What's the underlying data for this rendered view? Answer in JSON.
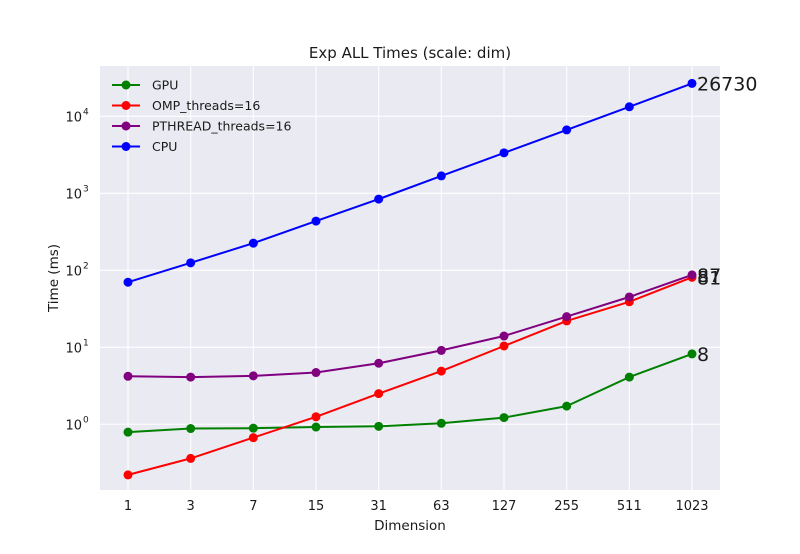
{
  "chart_data": {
    "type": "line",
    "title": "Exp ALL Times (scale: dim)",
    "xlabel": "Dimension",
    "ylabel": "Time (ms)",
    "x": [
      1,
      3,
      7,
      15,
      31,
      63,
      127,
      255,
      511,
      1023
    ],
    "x_scale": "log2",
    "y_scale": "log",
    "ylim": [
      0.14,
      45000
    ],
    "grid": true,
    "legend_position": "top-left",
    "y_ticks": [
      {
        "value": 1,
        "base": "10",
        "exp": "0"
      },
      {
        "value": 10,
        "base": "10",
        "exp": "1"
      },
      {
        "value": 100,
        "base": "10",
        "exp": "2"
      },
      {
        "value": 1000,
        "base": "10",
        "exp": "3"
      },
      {
        "value": 10000,
        "base": "10",
        "exp": "4"
      }
    ],
    "series": [
      {
        "name": "GPU",
        "color": "#008000",
        "values": [
          0.79,
          0.88,
          0.89,
          0.92,
          0.94,
          1.03,
          1.22,
          1.72,
          4.1,
          8.2
        ],
        "end_label": "8"
      },
      {
        "name": "OMP_threads=16",
        "color": "#ff0000",
        "values": [
          0.22,
          0.36,
          0.67,
          1.25,
          2.5,
          4.9,
          10.4,
          22,
          39,
          81
        ],
        "end_label": "81"
      },
      {
        "name": "PTHREAD_threads=16",
        "color": "#800080",
        "values": [
          4.2,
          4.1,
          4.25,
          4.7,
          6.2,
          9.1,
          14,
          25,
          45,
          87
        ],
        "end_label": "87"
      },
      {
        "name": "CPU",
        "color": "#0000ff",
        "values": [
          70,
          125,
          225,
          435,
          840,
          1680,
          3350,
          6650,
          13300,
          26730
        ],
        "end_label": "26730"
      }
    ]
  }
}
